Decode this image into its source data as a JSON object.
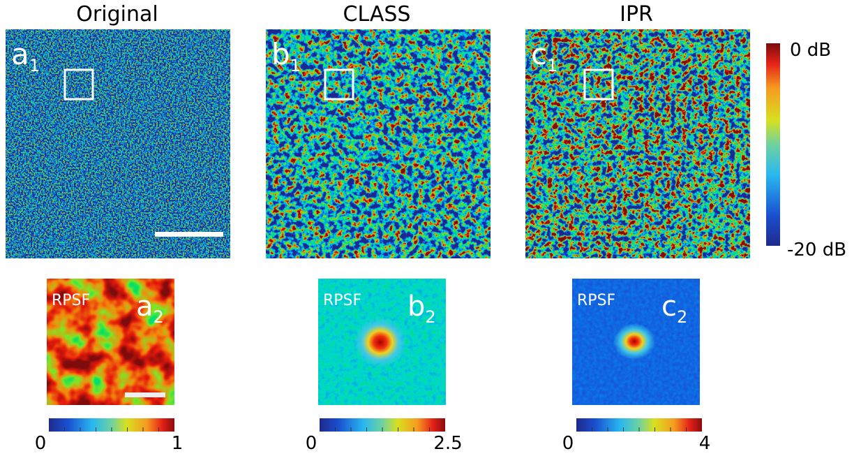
{
  "top": [
    {
      "title": "Original",
      "label": "a",
      "sub": "1"
    },
    {
      "title": "CLASS",
      "label": "b",
      "sub": "1"
    },
    {
      "title": "IPR",
      "label": "c",
      "sub": "1"
    }
  ],
  "colorbar": {
    "max": "0 dB",
    "min": "-20 dB"
  },
  "bottom": [
    {
      "caption": "RPSF",
      "label": "a",
      "sub": "2",
      "cmin": "0",
      "cmax": "1"
    },
    {
      "caption": "RPSF",
      "label": "b",
      "sub": "2",
      "cmin": "0",
      "cmax": "2.5"
    },
    {
      "caption": "RPSF",
      "label": "c",
      "sub": "2",
      "cmin": "0",
      "cmax": "4"
    }
  ]
}
